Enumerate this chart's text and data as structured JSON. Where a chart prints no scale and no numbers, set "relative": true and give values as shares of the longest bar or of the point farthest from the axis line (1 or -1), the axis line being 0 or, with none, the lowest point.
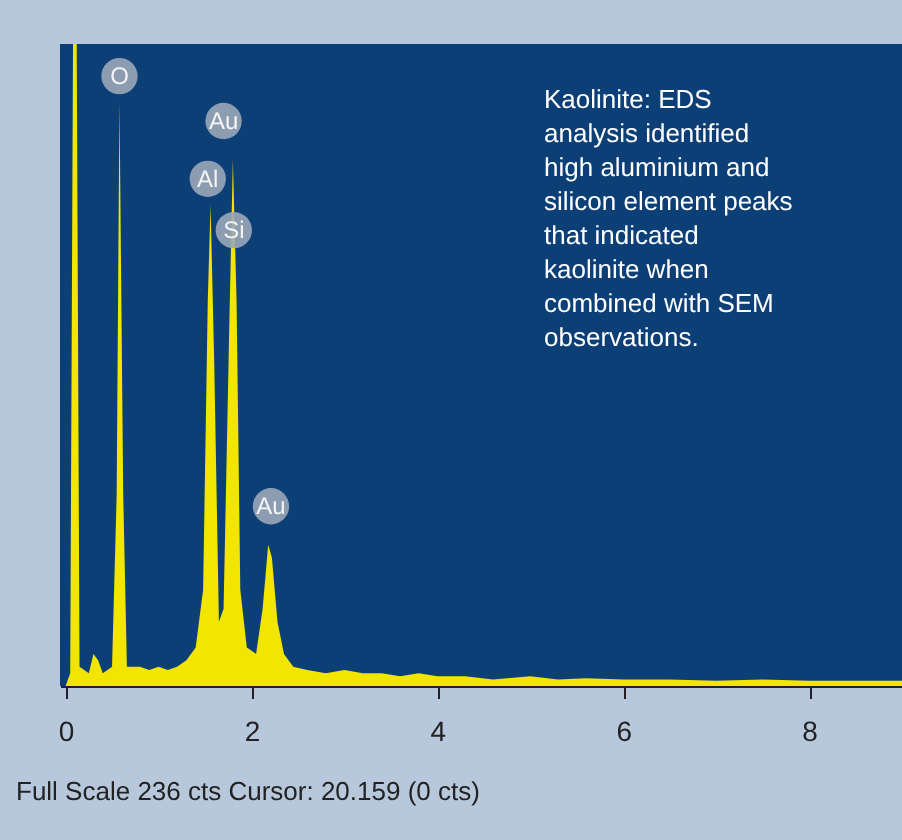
{
  "chart_data": {
    "type": "area",
    "relative": true,
    "xlim": [
      -0.06,
      9.0
    ],
    "xticks": [
      0,
      2,
      4,
      6,
      8
    ],
    "grid": false,
    "series": [
      {
        "color": "#f2e600",
        "x": [
          0.0,
          0.05,
          0.08,
          0.12,
          0.15,
          0.25,
          0.3,
          0.35,
          0.4,
          0.5,
          0.55,
          0.58,
          0.62,
          0.66,
          0.8,
          0.9,
          1.0,
          1.1,
          1.2,
          1.3,
          1.4,
          1.48,
          1.53,
          1.56,
          1.6,
          1.65,
          1.7,
          1.76,
          1.8,
          1.84,
          1.88,
          1.95,
          2.05,
          2.12,
          2.18,
          2.22,
          2.28,
          2.35,
          2.45,
          2.6,
          2.8,
          3.0,
          3.2,
          3.4,
          3.6,
          3.8,
          4.0,
          4.3,
          4.6,
          5.0,
          5.3,
          5.6,
          6.0,
          6.5,
          7.0,
          7.5,
          8.0,
          8.5,
          9.0
        ],
        "values": [
          0,
          0.02,
          1.0,
          1.0,
          0.03,
          0.02,
          0.05,
          0.04,
          0.02,
          0.03,
          0.3,
          0.91,
          0.3,
          0.03,
          0.03,
          0.025,
          0.03,
          0.025,
          0.03,
          0.04,
          0.06,
          0.15,
          0.6,
          0.75,
          0.5,
          0.1,
          0.12,
          0.55,
          0.82,
          0.6,
          0.15,
          0.06,
          0.05,
          0.12,
          0.22,
          0.2,
          0.1,
          0.05,
          0.03,
          0.025,
          0.02,
          0.025,
          0.02,
          0.02,
          0.015,
          0.02,
          0.015,
          0.015,
          0.01,
          0.015,
          0.01,
          0.012,
          0.01,
          0.01,
          0.008,
          0.01,
          0.008,
          0.008,
          0.008
        ]
      }
    ],
    "annotations": [
      {
        "text": "O",
        "x": 0.58,
        "y": 0.95
      },
      {
        "text": "Au",
        "x": 1.7,
        "y": 0.88
      },
      {
        "text": "Al",
        "x": 1.53,
        "y": 0.79
      },
      {
        "text": "Si",
        "x": 1.81,
        "y": 0.71
      },
      {
        "text": "Au",
        "x": 2.21,
        "y": 0.28
      },
      "Kaolinite: EDS analysis identified high aluminium and silicon element peaks that indicated kaolinite when combined with SEM observations.",
      "Full Scale 236 cts Cursor: 20.159 (0 cts)"
    ]
  }
}
